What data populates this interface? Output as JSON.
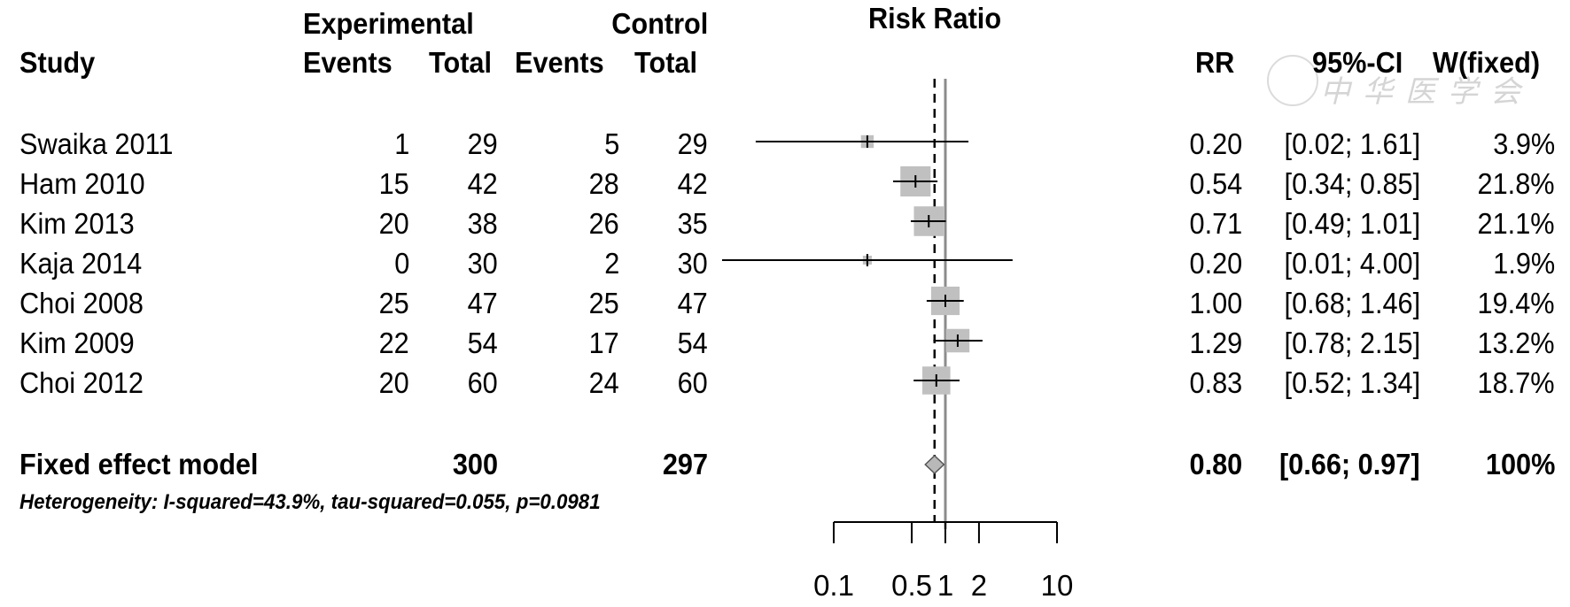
{
  "header": {
    "study": "Study",
    "experimental": "Experimental",
    "control": "Control",
    "events": "Events",
    "total": "Total",
    "plot_title": "Risk Ratio",
    "rr": "RR",
    "ci": "95%-CI",
    "weight": "W(fixed)"
  },
  "studies": [
    {
      "name": "Swaika 2011",
      "exp_events": "1",
      "exp_total": "29",
      "ctrl_events": "5",
      "ctrl_total": "29",
      "rr": "0.20",
      "ci": "[0.02; 1.61]",
      "weight": "3.9%"
    },
    {
      "name": "Ham 2010",
      "exp_events": "15",
      "exp_total": "42",
      "ctrl_events": "28",
      "ctrl_total": "42",
      "rr": "0.54",
      "ci": "[0.34; 0.85]",
      "weight": "21.8%"
    },
    {
      "name": "Kim 2013",
      "exp_events": "20",
      "exp_total": "38",
      "ctrl_events": "26",
      "ctrl_total": "35",
      "rr": "0.71",
      "ci": "[0.49; 1.01]",
      "weight": "21.1%"
    },
    {
      "name": "Kaja 2014",
      "exp_events": "0",
      "exp_total": "30",
      "ctrl_events": "2",
      "ctrl_total": "30",
      "rr": "0.20",
      "ci": "[0.01; 4.00]",
      "weight": "1.9%"
    },
    {
      "name": "Choi 2008",
      "exp_events": "25",
      "exp_total": "47",
      "ctrl_events": "25",
      "ctrl_total": "47",
      "rr": "1.00",
      "ci": "[0.68; 1.46]",
      "weight": "19.4%"
    },
    {
      "name": "Kim 2009",
      "exp_events": "22",
      "exp_total": "54",
      "ctrl_events": "17",
      "ctrl_total": "54",
      "rr": "1.29",
      "ci": "[0.78; 2.15]",
      "weight": "13.2%"
    },
    {
      "name": "Choi 2012",
      "exp_events": "20",
      "exp_total": "60",
      "ctrl_events": "24",
      "ctrl_total": "60",
      "rr": "0.83",
      "ci": "[0.52; 1.34]",
      "weight": "18.7%"
    }
  ],
  "summary": {
    "label": "Fixed effect model",
    "exp_total": "300",
    "ctrl_total": "297",
    "rr": "0.80",
    "ci": "[0.66; 0.97]",
    "weight": "100%"
  },
  "heterogeneity": "Heterogeneity: I-squared=43.9%, tau-squared=0.055, p=0.0981",
  "watermark": "中华医学会",
  "chart_data": {
    "type": "forest",
    "title": "Risk Ratio",
    "x_scale": "log",
    "xlim": [
      0.1,
      10
    ],
    "x_ticks": [
      0.1,
      0.5,
      1,
      2,
      10
    ],
    "x_tick_labels": [
      "0.1",
      "0.5",
      "1",
      "2",
      "10"
    ],
    "reference_line": 1,
    "summary_line": 0.8,
    "series": [
      {
        "name": "Swaika 2011",
        "rr": 0.2,
        "lower": 0.02,
        "upper": 1.61,
        "weight": 3.9
      },
      {
        "name": "Ham 2010",
        "rr": 0.54,
        "lower": 0.34,
        "upper": 0.85,
        "weight": 21.8
      },
      {
        "name": "Kim 2013",
        "rr": 0.71,
        "lower": 0.49,
        "upper": 1.01,
        "weight": 21.1
      },
      {
        "name": "Kaja 2014",
        "rr": 0.2,
        "lower": 0.01,
        "upper": 4.0,
        "weight": 1.9
      },
      {
        "name": "Choi 2008",
        "rr": 1.0,
        "lower": 0.68,
        "upper": 1.46,
        "weight": 19.4
      },
      {
        "name": "Kim 2009",
        "rr": 1.29,
        "lower": 0.78,
        "upper": 2.15,
        "weight": 13.2
      },
      {
        "name": "Choi 2012",
        "rr": 0.83,
        "lower": 0.52,
        "upper": 1.34,
        "weight": 18.7
      }
    ],
    "pooled": {
      "name": "Fixed effect model",
      "rr": 0.8,
      "lower": 0.66,
      "upper": 0.97,
      "weight": 100
    }
  }
}
